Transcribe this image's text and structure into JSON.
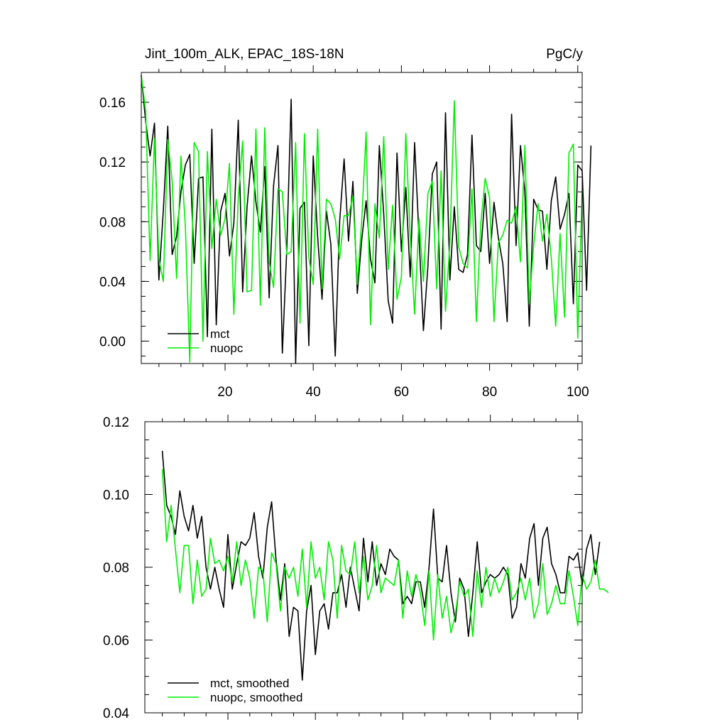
{
  "chart_data": [
    {
      "type": "line",
      "title": "Jint_100m_ALK, EPAC_18S-18N",
      "units": "PgC/y",
      "xlabel": "",
      "ylabel": "",
      "xlim": [
        1,
        101
      ],
      "ylim": [
        -0.015,
        0.18
      ],
      "x_ticks": [
        20,
        40,
        60,
        80,
        100
      ],
      "x_tick_labels": [
        "20",
        "40",
        "60",
        "80",
        "100"
      ],
      "y_ticks": [
        0.0,
        0.04,
        0.08,
        0.12,
        0.16
      ],
      "y_tick_labels": [
        "0.00",
        "0.04",
        "0.08",
        "0.12",
        "0.16"
      ],
      "legend_position": "bottom-left",
      "x_start": 1,
      "series": [
        {
          "name": "mct",
          "color": "#000000",
          "values": [
            0.178,
            0.147,
            0.124,
            0.146,
            0.041,
            0.088,
            0.144,
            0.058,
            0.07,
            0.1,
            0.118,
            0.125,
            0.052,
            0.109,
            0.11,
            0.003,
            0.142,
            0.011,
            0.087,
            0.099,
            0.057,
            0.079,
            0.148,
            0.033,
            0.09,
            0.124,
            0.093,
            0.073,
            0.117,
            0.029,
            0.104,
            0.131,
            -0.008,
            0.061,
            0.162,
            -0.02,
            0.089,
            0.093,
            -0.003,
            0.124,
            0.07,
            0.028,
            0.087,
            0.065,
            -0.01,
            0.08,
            0.122,
            0.067,
            0.107,
            0.032,
            0.068,
            0.094,
            0.055,
            0.039,
            0.131,
            0.085,
            0.027,
            0.012,
            0.126,
            0.06,
            0.103,
            0.043,
            0.133,
            0.07,
            0.007,
            0.05,
            0.112,
            0.12,
            0.008,
            0.153,
            0.041,
            0.09,
            0.048,
            0.046,
            0.058,
            0.138,
            0.064,
            0.06,
            0.099,
            0.052,
            0.093,
            0.069,
            0.052,
            0.013,
            0.152,
            0.064,
            0.131,
            0.1,
            0.01,
            0.095,
            0.088,
            0.087,
            0.048,
            0.094,
            0.11,
            0.075,
            0.085,
            0.099,
            0.025,
            0.118,
            0.114,
            0.034,
            0.131
          ]
        },
        {
          "name": "nuopc",
          "color": "#00ee00",
          "values": [
            0.178,
            0.154,
            0.054,
            0.136,
            0.055,
            0.04,
            0.135,
            0.107,
            0.042,
            0.124,
            0.077,
            -0.014,
            0.133,
            0.127,
            0.0,
            0.127,
            0.062,
            0.095,
            0.071,
            0.082,
            0.119,
            0.018,
            0.096,
            0.134,
            0.033,
            0.034,
            0.142,
            0.024,
            0.143,
            0.053,
            0.036,
            0.102,
            0.1,
            0.058,
            0.06,
            0.133,
            0.012,
            0.139,
            0.056,
            0.038,
            0.142,
            0.035,
            0.095,
            0.092,
            0.082,
            0.055,
            0.084,
            0.084,
            0.097,
            0.038,
            0.081,
            0.14,
            0.011,
            0.092,
            0.069,
            0.137,
            0.048,
            0.091,
            0.028,
            0.043,
            0.139,
            0.07,
            0.018,
            0.082,
            0.04,
            0.099,
            0.107,
            0.035,
            0.114,
            0.02,
            0.066,
            0.161,
            0.063,
            0.052,
            0.049,
            0.102,
            0.013,
            0.079,
            0.109,
            0.096,
            0.013,
            0.066,
            0.071,
            0.081,
            0.079,
            0.09,
            0.053,
            0.131,
            0.025,
            0.064,
            0.092,
            0.067,
            0.085,
            0.056,
            0.01,
            0.072,
            0.016,
            0.126,
            0.132,
            0.002,
            0.101
          ]
        }
      ]
    },
    {
      "type": "line",
      "title": "",
      "xlabel": "",
      "ylabel": "",
      "xlim": [
        1,
        101
      ],
      "ylim": [
        0.04,
        0.12
      ],
      "x_ticks": [
        20,
        40,
        60,
        80,
        100
      ],
      "x_tick_labels": [],
      "y_ticks": [
        0.04,
        0.06,
        0.08,
        0.1,
        0.12
      ],
      "y_tick_labels": [
        "0.04",
        "0.06",
        "0.08",
        "0.10",
        "0.12"
      ],
      "legend_position": "bottom-left",
      "x_start": 5,
      "series": [
        {
          "name": "mct, smoothed",
          "color": "#000000",
          "values": [
            0.112,
            0.097,
            0.094,
            0.089,
            0.101,
            0.094,
            0.09,
            0.097,
            0.088,
            0.094,
            0.08,
            0.074,
            0.08,
            0.074,
            0.069,
            0.089,
            0.074,
            0.081,
            0.087,
            0.086,
            0.088,
            0.095,
            0.083,
            0.077,
            0.091,
            0.098,
            0.082,
            0.071,
            0.081,
            0.061,
            0.069,
            0.068,
            0.049,
            0.068,
            0.075,
            0.056,
            0.068,
            0.07,
            0.063,
            0.073,
            0.073,
            0.078,
            0.069,
            0.08,
            0.074,
            0.068,
            0.088,
            0.076,
            0.087,
            0.075,
            0.081,
            0.078,
            0.085,
            0.083,
            0.082,
            0.07,
            0.072,
            0.07,
            0.076,
            0.076,
            0.069,
            0.08,
            0.096,
            0.077,
            0.076,
            0.086,
            0.073,
            0.065,
            0.077,
            0.074,
            0.061,
            0.073,
            0.087,
            0.073,
            0.076,
            0.078,
            0.077,
            0.078,
            0.08,
            0.078,
            0.066,
            0.069,
            0.081,
            0.077,
            0.088,
            0.092,
            0.075,
            0.088,
            0.091,
            0.081,
            0.078,
            0.073,
            0.073,
            0.083,
            0.082,
            0.084,
            0.075,
            0.085,
            0.089,
            0.078,
            0.087
          ]
        },
        {
          "name": "nuopc, smoothed",
          "color": "#00ee00",
          "values": [
            0.107,
            0.087,
            0.097,
            0.085,
            0.073,
            0.086,
            0.086,
            0.07,
            0.082,
            0.072,
            0.074,
            0.088,
            0.081,
            0.082,
            0.079,
            0.083,
            0.076,
            0.087,
            0.075,
            0.082,
            0.077,
            0.066,
            0.08,
            0.079,
            0.065,
            0.084,
            0.081,
            0.068,
            0.08,
            0.077,
            0.08,
            0.072,
            0.085,
            0.069,
            0.087,
            0.077,
            0.08,
            0.071,
            0.087,
            0.082,
            0.066,
            0.086,
            0.079,
            0.078,
            0.087,
            0.073,
            0.083,
            0.071,
            0.075,
            0.086,
            0.073,
            0.077,
            0.076,
            0.075,
            0.082,
            0.066,
            0.079,
            0.072,
            0.078,
            0.073,
            0.064,
            0.079,
            0.06,
            0.078,
            0.066,
            0.072,
            0.062,
            0.067,
            0.076,
            0.072,
            0.074,
            0.061,
            0.079,
            0.069,
            0.08,
            0.072,
            0.077,
            0.073,
            0.076,
            0.08,
            0.071,
            0.073,
            0.077,
            0.071,
            0.077,
            0.066,
            0.07,
            0.081,
            0.067,
            0.07,
            0.075,
            0.07,
            0.07,
            0.079,
            0.072,
            0.064,
            0.078,
            0.074,
            0.076,
            0.082,
            0.074,
            0.074,
            0.073
          ]
        }
      ]
    }
  ]
}
